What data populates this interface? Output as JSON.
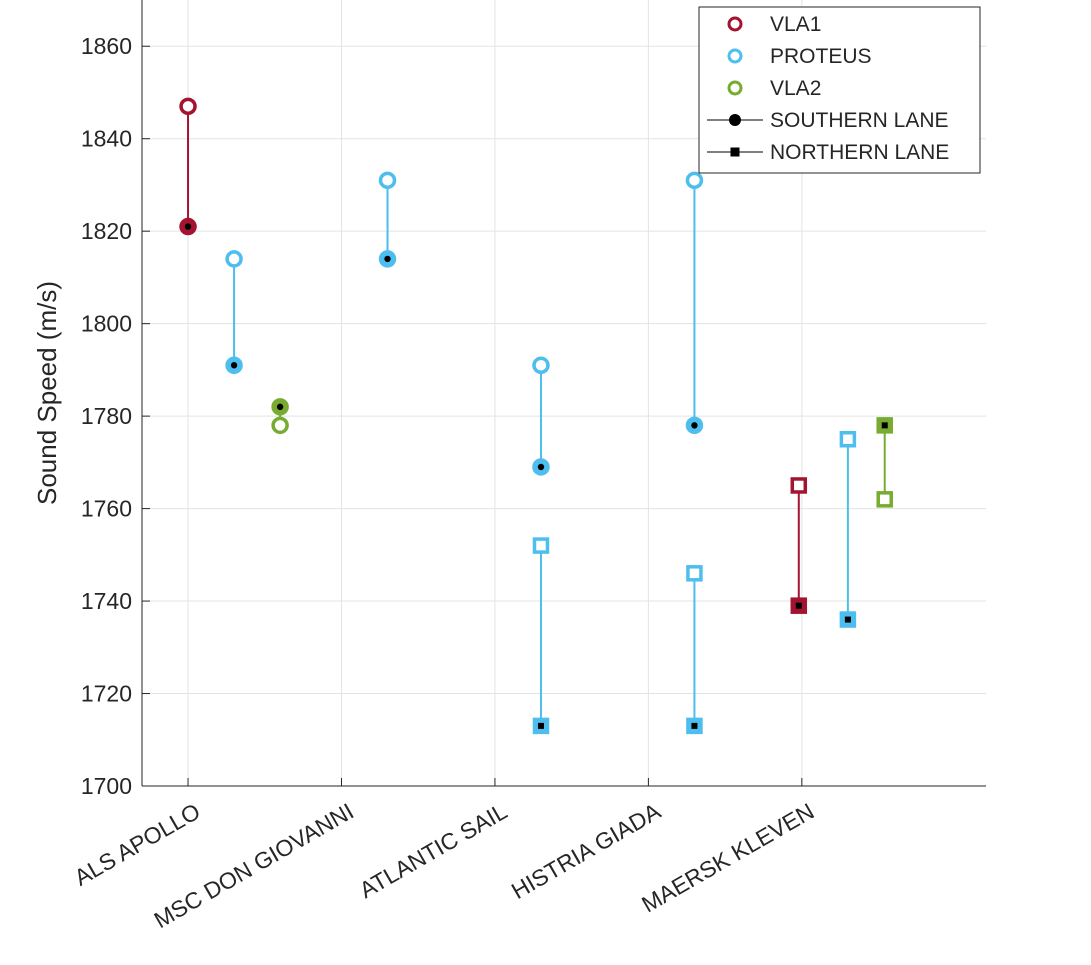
{
  "chart_data": {
    "type": "scatter",
    "ylabel": "Sound Speed (m/s)",
    "xlabel": "",
    "title": "",
    "ylim": [
      1700,
      1870
    ],
    "yticks": [
      1700,
      1720,
      1740,
      1760,
      1780,
      1800,
      1820,
      1840,
      1860
    ],
    "grid": true,
    "legend_position": "top-right",
    "categories": [
      "ALS APOLLO",
      "MSC DON GIOVANNI",
      "ATLANTIC SAIL",
      "HISTRIA GIADA",
      "MAERSK KLEVEN"
    ],
    "legend": [
      {
        "label": "VLA1",
        "kind": "circle",
        "color": "#a2142f"
      },
      {
        "label": "PROTEUS",
        "kind": "circle",
        "color": "#4dbeee"
      },
      {
        "label": "VLA2",
        "kind": "circle",
        "color": "#77ac30"
      },
      {
        "label": "SOUTHERN LANE",
        "kind": "line-dot",
        "color": "#000000"
      },
      {
        "label": "NORTHERN LANE",
        "kind": "line-square",
        "color": "#000000"
      }
    ],
    "series": [
      {
        "group": "ALS APOLLO",
        "station": "VLA1",
        "lane": "southern",
        "marker": "circle",
        "color": "#a2142f",
        "x": 0.0,
        "top": 1847,
        "bottom": 1821
      },
      {
        "group": "ALS APOLLO",
        "station": "PROTEUS",
        "lane": "southern",
        "marker": "circle",
        "color": "#4dbeee",
        "x": 0.3,
        "top": 1814,
        "bottom": 1791
      },
      {
        "group": "ALS APOLLO",
        "station": "VLA2",
        "lane": "southern",
        "marker": "circle",
        "color": "#77ac30",
        "x": 0.6,
        "top": 1782,
        "bottom": 1778,
        "filled_value": 1782
      },
      {
        "group": "MSC DON GIOVANNI",
        "station": "PROTEUS",
        "lane": "southern",
        "marker": "circle",
        "color": "#4dbeee",
        "x": 1.3,
        "top": 1831,
        "bottom": 1814
      },
      {
        "group": "ATLANTIC SAIL",
        "station": "PROTEUS",
        "lane": "southern",
        "marker": "circle",
        "color": "#4dbeee",
        "x": 2.3,
        "top": 1791,
        "bottom": 1769
      },
      {
        "group": "ATLANTIC SAIL",
        "station": "PROTEUS",
        "lane": "northern",
        "marker": "square",
        "color": "#4dbeee",
        "x": 2.3,
        "top": 1752,
        "bottom": 1713
      },
      {
        "group": "HISTRIA GIADA",
        "station": "PROTEUS",
        "lane": "southern",
        "marker": "circle",
        "color": "#4dbeee",
        "x": 3.3,
        "top": 1831,
        "bottom": 1778
      },
      {
        "group": "HISTRIA GIADA",
        "station": "PROTEUS",
        "lane": "northern",
        "marker": "square",
        "color": "#4dbeee",
        "x": 3.3,
        "top": 1746,
        "bottom": 1713
      },
      {
        "group": "MAERSK KLEVEN",
        "station": "VLA1",
        "lane": "northern",
        "marker": "square",
        "color": "#a2142f",
        "x": 3.98,
        "top": 1765,
        "bottom": 1739
      },
      {
        "group": "MAERSK KLEVEN",
        "station": "PROTEUS",
        "lane": "northern",
        "marker": "square",
        "color": "#4dbeee",
        "x": 4.3,
        "top": 1775,
        "bottom": 1736
      },
      {
        "group": "MAERSK KLEVEN",
        "station": "VLA2",
        "lane": "northern",
        "marker": "square",
        "color": "#77ac30",
        "x": 4.54,
        "top": 1778,
        "bottom": 1762,
        "filled_value": 1778
      }
    ]
  }
}
